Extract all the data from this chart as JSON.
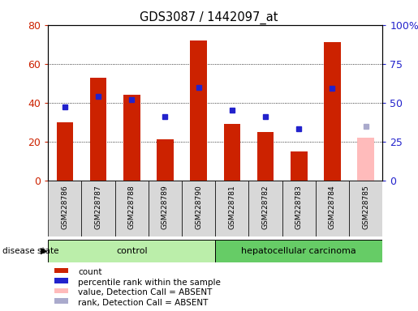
{
  "title": "GDS3087 / 1442097_at",
  "samples": [
    "GSM228786",
    "GSM228787",
    "GSM228788",
    "GSM228789",
    "GSM228790",
    "GSM228781",
    "GSM228782",
    "GSM228783",
    "GSM228784",
    "GSM228785"
  ],
  "bar_values": [
    30,
    53,
    44,
    21,
    72,
    29,
    25,
    15,
    71,
    22
  ],
  "bar_absent": [
    false,
    false,
    false,
    false,
    false,
    false,
    false,
    false,
    false,
    true
  ],
  "dot_values_pct": [
    47,
    54,
    52,
    41,
    60,
    45,
    41,
    33,
    59,
    35
  ],
  "dot_absent": [
    false,
    false,
    false,
    false,
    false,
    false,
    false,
    false,
    false,
    true
  ],
  "control_count": 5,
  "cancer_count": 5,
  "control_label": "control",
  "cancer_label": "hepatocellular carcinoma",
  "disease_state_label": "disease state",
  "legend_items": [
    {
      "label": "count",
      "color": "#cc2200"
    },
    {
      "label": "percentile rank within the sample",
      "color": "#2222cc"
    },
    {
      "label": "value, Detection Call = ABSENT",
      "color": "#ffbbbb"
    },
    {
      "label": "rank, Detection Call = ABSENT",
      "color": "#aaaacc"
    }
  ],
  "left_ylim": [
    0,
    80
  ],
  "right_ylim": [
    0,
    100
  ],
  "left_yticks": [
    0,
    20,
    40,
    60,
    80
  ],
  "right_yticks": [
    0,
    25,
    50,
    75,
    100
  ],
  "right_yticklabels": [
    "0",
    "25",
    "50",
    "75",
    "100%"
  ],
  "bar_color": "#cc2200",
  "bar_absent_color": "#ffbbbb",
  "dot_color": "#2222cc",
  "dot_absent_color": "#aaaacc",
  "plot_bg": "#ffffff",
  "label_bg": "#d8d8d8",
  "control_bg": "#bbeeaa",
  "cancer_bg": "#66cc66",
  "bar_width": 0.5
}
